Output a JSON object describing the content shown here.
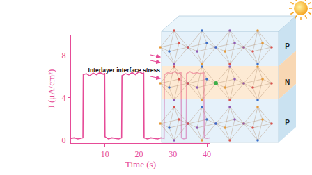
{
  "chart_data": {
    "type": "line",
    "x_label": "Time (s)",
    "y_label": "J (μA/cm²)",
    "color": "#e64b97",
    "grid": false,
    "x": [
      0,
      1,
      2,
      3,
      3.5,
      3.6,
      4.5,
      5.5,
      6.5,
      7.5,
      8.5,
      9.5,
      9.9,
      10.0,
      11,
      12,
      13,
      14,
      14.9,
      15,
      16,
      17,
      18,
      19,
      20,
      21,
      21.4,
      21.5,
      22.5,
      23.5,
      24.5,
      25.5,
      26.5,
      27.4,
      27.5,
      28.5,
      29.5,
      30.5,
      31.5,
      32.4,
      32.5,
      33.2,
      33.9,
      34,
      35,
      36,
      37,
      38,
      39.1,
      39.2,
      40,
      40.8
    ],
    "values": [
      0.15,
      0.2,
      0.1,
      0.18,
      0.2,
      6.2,
      6.3,
      6.1,
      6.35,
      6.2,
      6.4,
      6.25,
      6.3,
      0.3,
      0.1,
      0.2,
      0.15,
      0.1,
      0.2,
      6.1,
      6.3,
      6.2,
      6.4,
      6.2,
      6.5,
      6.3,
      6.4,
      0.2,
      0.1,
      0.2,
      0.15,
      0.1,
      0.2,
      0.15,
      6.2,
      6.4,
      6.3,
      6.5,
      6.3,
      6.4,
      0.2,
      0.1,
      0.15,
      6.3,
      6.5,
      6.3,
      6.4,
      6.3,
      6.4,
      0.2,
      0.15,
      0.2
    ],
    "xlim": [
      0,
      41
    ],
    "xticks": [
      10,
      20,
      30,
      40
    ],
    "ylim": [
      -0.3,
      10
    ],
    "yticks": [
      0,
      4,
      8
    ]
  },
  "inset": {
    "annotation": "Interlayer interface stress",
    "layers": [
      "P",
      "N",
      "P"
    ]
  }
}
